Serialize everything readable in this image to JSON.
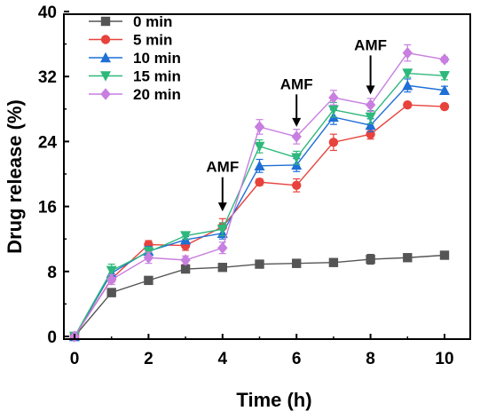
{
  "chart_data": {
    "type": "line",
    "xlabel": "Time (h)",
    "ylabel": "Drug release (%)",
    "xlim": [
      0,
      10
    ],
    "ylim": [
      0,
      40
    ],
    "x_ticks": [
      0,
      2,
      4,
      6,
      8,
      10
    ],
    "y_ticks": [
      0,
      8,
      16,
      24,
      32,
      40
    ],
    "grid": false,
    "legend_position": "top-left",
    "x": [
      0,
      1,
      2,
      3,
      4,
      5,
      6,
      7,
      8,
      9,
      10
    ],
    "series": [
      {
        "name": "0 min",
        "color": "#555555",
        "marker": "square",
        "values": [
          0,
          5.4,
          6.9,
          8.3,
          8.5,
          8.9,
          9.0,
          9.1,
          9.5,
          9.7,
          10.0
        ],
        "errors": [
          0,
          0.5,
          0.3,
          0.3,
          0.3,
          0.3,
          0.5,
          0.3,
          0.6,
          0.3,
          0.3
        ]
      },
      {
        "name": "5 min",
        "color": "#e8423c",
        "marker": "circle",
        "values": [
          0,
          7.1,
          11.3,
          11.2,
          13.5,
          19.0,
          18.6,
          23.9,
          24.9,
          28.5,
          28.3
        ],
        "errors": [
          0,
          0.4,
          0.5,
          0.6,
          1.0,
          0.4,
          0.8,
          1.0,
          0.6,
          0.3,
          0.3
        ]
      },
      {
        "name": "10 min",
        "color": "#1f6fd6",
        "marker": "triangle-up",
        "values": [
          0,
          7.8,
          10.5,
          11.9,
          12.7,
          21.0,
          21.1,
          27.0,
          26.0,
          30.9,
          30.3
        ],
        "errors": [
          0,
          0.6,
          0.6,
          0.4,
          0.7,
          0.8,
          0.8,
          0.9,
          0.8,
          0.8,
          0.5
        ]
      },
      {
        "name": "15 min",
        "color": "#2eb87b",
        "marker": "triangle-down",
        "values": [
          0,
          8.1,
          10.4,
          12.4,
          13.2,
          23.4,
          22.0,
          27.9,
          27.0,
          32.4,
          32.1
        ],
        "errors": [
          0,
          0.8,
          0.6,
          0.4,
          0.8,
          0.8,
          0.8,
          0.9,
          0.8,
          0.5,
          0.5
        ]
      },
      {
        "name": "20 min",
        "color": "#c87fe0",
        "marker": "diamond",
        "values": [
          0,
          7.0,
          9.7,
          9.4,
          10.9,
          25.8,
          24.6,
          29.4,
          28.5,
          34.9,
          34.1
        ],
        "errors": [
          0,
          0.6,
          0.7,
          0.5,
          0.7,
          0.9,
          0.9,
          0.9,
          0.8,
          1.0,
          0.3
        ]
      }
    ],
    "annotations": [
      {
        "text": "AMF",
        "x": 4,
        "arrow_from_y": 19.6,
        "arrow_to_y": 15.4
      },
      {
        "text": "AMF",
        "x": 6,
        "arrow_from_y": 29.8,
        "arrow_to_y": 25.8
      },
      {
        "text": "AMF",
        "x": 8,
        "arrow_from_y": 34.6,
        "arrow_to_y": 29.8
      }
    ]
  }
}
